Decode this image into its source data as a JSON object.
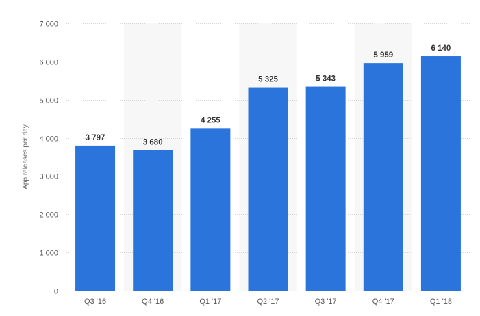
{
  "chart_data": {
    "type": "bar",
    "categories": [
      "Q3 '16",
      "Q4 '16",
      "Q1 '17",
      "Q2 '17",
      "Q3 '17",
      "Q4 '17",
      "Q1 '18"
    ],
    "values": [
      3797,
      3680,
      4255,
      5325,
      5343,
      5959,
      6140
    ],
    "value_labels": [
      "3 797",
      "3 680",
      "4 255",
      "5 325",
      "5 343",
      "5 959",
      "6 140"
    ],
    "ylabel": "App releases per day",
    "ylim": [
      0,
      7000
    ],
    "yticks": [
      0,
      1000,
      2000,
      3000,
      4000,
      5000,
      6000,
      7000
    ],
    "ytick_labels": [
      "0",
      "1 000",
      "2 000",
      "3 000",
      "4 000",
      "5 000",
      "6 000",
      "7 000"
    ],
    "grid": true,
    "legend": "none",
    "colors": {
      "bar": "#2a74db",
      "band": "#f7f7f7",
      "grid": "#d6d6d6",
      "axis": "#333333"
    }
  }
}
